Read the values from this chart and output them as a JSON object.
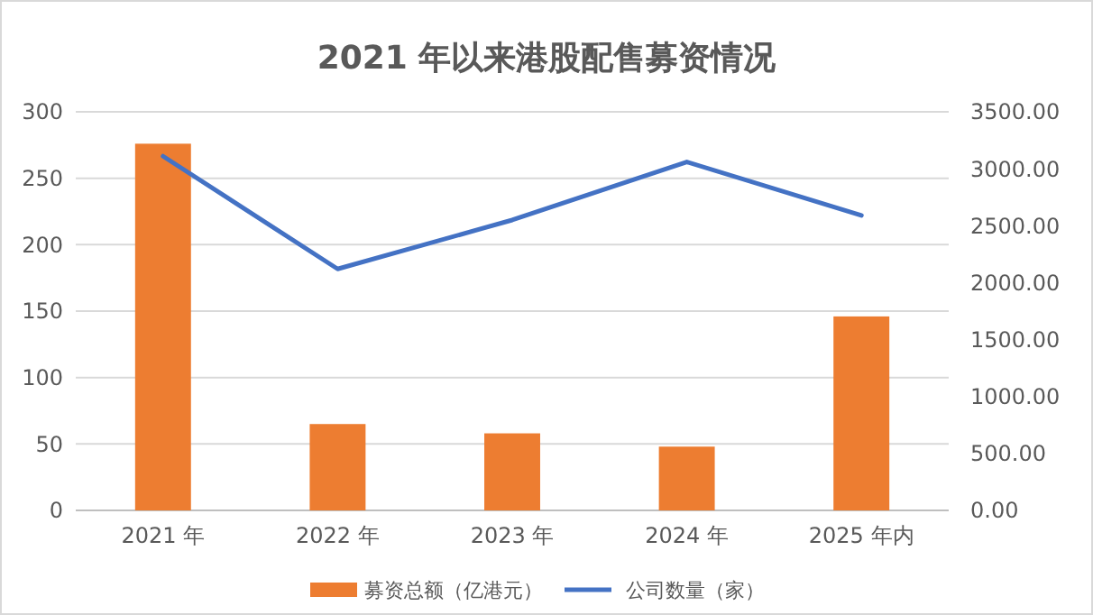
{
  "chart_data": {
    "type": "bar",
    "title": "2021 年以来港股配售募资情况",
    "categories": [
      "2021 年",
      "2022 年",
      "2023 年",
      "2024 年",
      "2025 年内"
    ],
    "series": [
      {
        "name": "募资总额（亿港元）",
        "color": "#ed7d31",
        "values": [
          276,
          65,
          58,
          48,
          146
        ]
      },
      {
        "name": "公司数量（家）",
        "type": "line",
        "axis": "y2",
        "color": "#4472c4",
        "values": [
          3110,
          2120,
          2550,
          3060,
          2590
        ]
      }
    ],
    "ylim": [
      0,
      300
    ],
    "yticks": [
      0,
      50,
      100,
      150,
      200,
      250,
      300
    ],
    "y2lim": [
      0,
      3500
    ],
    "y2ticks": [
      {
        "value": 0,
        "label": "0.00"
      },
      {
        "value": 500,
        "label": "500.00"
      },
      {
        "value": 1000,
        "label": "1000.00"
      },
      {
        "value": 1500,
        "label": "1500.00"
      },
      {
        "value": 2000,
        "label": "2000.00"
      },
      {
        "value": 2500,
        "label": "2500.00"
      },
      {
        "value": 3000,
        "label": "3000.00"
      },
      {
        "value": 3500,
        "label": "3500.00"
      }
    ],
    "grid": "y",
    "legend": "bottom"
  }
}
